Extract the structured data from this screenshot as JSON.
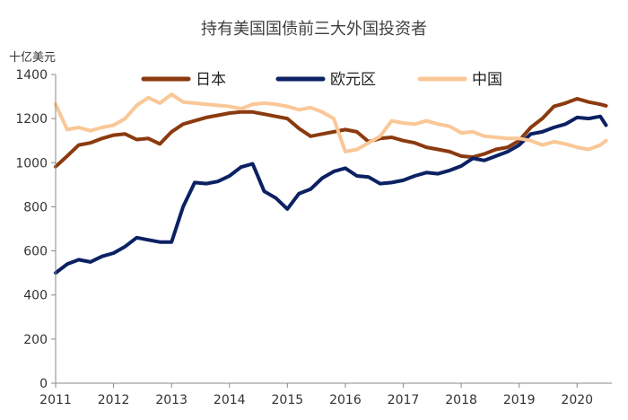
{
  "chart_data": {
    "type": "line",
    "title": "持有美国国债前三大外国投资者",
    "ylabel": "十亿美元",
    "xlabel": "",
    "xlim": [
      2011,
      2020.6
    ],
    "ylim": [
      0,
      1400
    ],
    "yticks": [
      "0",
      "200",
      "400",
      "600",
      "800",
      "1000",
      "1200",
      "1400"
    ],
    "xticks": [
      "2011",
      "2012",
      "2013",
      "2014",
      "2015",
      "2016",
      "2017",
      "2018",
      "2019",
      "2020"
    ],
    "grid": false,
    "legend": "top",
    "series": [
      {
        "name": "日本",
        "color": "#8B3A0F",
        "x": [
          2011.0,
          2011.2,
          2011.4,
          2011.6,
          2011.8,
          2012.0,
          2012.2,
          2012.4,
          2012.6,
          2012.8,
          2013.0,
          2013.2,
          2013.4,
          2013.6,
          2013.8,
          2014.0,
          2014.2,
          2014.4,
          2014.6,
          2014.8,
          2015.0,
          2015.2,
          2015.4,
          2015.6,
          2015.8,
          2016.0,
          2016.2,
          2016.4,
          2016.6,
          2016.8,
          2017.0,
          2017.2,
          2017.4,
          2017.6,
          2017.8,
          2018.0,
          2018.2,
          2018.4,
          2018.6,
          2018.8,
          2019.0,
          2019.2,
          2019.4,
          2019.6,
          2019.8,
          2020.0,
          2020.2,
          2020.4,
          2020.5
        ],
        "values": [
          982,
          1030,
          1080,
          1090,
          1110,
          1125,
          1130,
          1105,
          1110,
          1085,
          1140,
          1175,
          1190,
          1205,
          1215,
          1225,
          1230,
          1230,
          1220,
          1210,
          1200,
          1155,
          1120,
          1130,
          1140,
          1150,
          1140,
          1095,
          1110,
          1115,
          1100,
          1090,
          1070,
          1060,
          1050,
          1030,
          1025,
          1040,
          1060,
          1070,
          1100,
          1160,
          1200,
          1255,
          1270,
          1290,
          1275,
          1265,
          1258
        ]
      },
      {
        "name": "欧元区",
        "color": "#0B2163",
        "x": [
          2011.0,
          2011.2,
          2011.4,
          2011.6,
          2011.8,
          2012.0,
          2012.2,
          2012.4,
          2012.6,
          2012.8,
          2013.0,
          2013.2,
          2013.4,
          2013.6,
          2013.8,
          2014.0,
          2014.2,
          2014.4,
          2014.6,
          2014.8,
          2015.0,
          2015.2,
          2015.4,
          2015.6,
          2015.8,
          2016.0,
          2016.2,
          2016.4,
          2016.6,
          2016.8,
          2017.0,
          2017.2,
          2017.4,
          2017.6,
          2017.8,
          2018.0,
          2018.2,
          2018.4,
          2018.6,
          2018.8,
          2019.0,
          2019.2,
          2019.4,
          2019.6,
          2019.8,
          2020.0,
          2020.2,
          2020.4,
          2020.5
        ],
        "values": [
          500,
          540,
          560,
          550,
          575,
          590,
          620,
          660,
          650,
          640,
          640,
          800,
          910,
          905,
          915,
          940,
          980,
          995,
          870,
          840,
          790,
          860,
          880,
          930,
          960,
          975,
          940,
          935,
          905,
          910,
          920,
          940,
          955,
          950,
          965,
          985,
          1020,
          1010,
          1030,
          1050,
          1080,
          1130,
          1140,
          1160,
          1175,
          1205,
          1200,
          1210,
          1170
        ]
      },
      {
        "name": "中国",
        "color": "#FAC797",
        "x": [
          2011.0,
          2011.2,
          2011.4,
          2011.6,
          2011.8,
          2012.0,
          2012.2,
          2012.4,
          2012.6,
          2012.8,
          2013.0,
          2013.2,
          2013.4,
          2013.6,
          2013.8,
          2014.0,
          2014.2,
          2014.4,
          2014.6,
          2014.8,
          2015.0,
          2015.2,
          2015.4,
          2015.6,
          2015.8,
          2016.0,
          2016.2,
          2016.4,
          2016.6,
          2016.8,
          2017.0,
          2017.2,
          2017.4,
          2017.6,
          2017.8,
          2018.0,
          2018.2,
          2018.4,
          2018.6,
          2018.8,
          2019.0,
          2019.2,
          2019.4,
          2019.6,
          2019.8,
          2020.0,
          2020.2,
          2020.4,
          2020.5
        ],
        "values": [
          1265,
          1150,
          1160,
          1145,
          1160,
          1170,
          1200,
          1260,
          1295,
          1270,
          1310,
          1275,
          1270,
          1265,
          1260,
          1255,
          1245,
          1265,
          1270,
          1265,
          1255,
          1240,
          1250,
          1230,
          1200,
          1050,
          1060,
          1090,
          1120,
          1190,
          1180,
          1175,
          1190,
          1175,
          1165,
          1135,
          1140,
          1120,
          1115,
          1110,
          1110,
          1100,
          1080,
          1095,
          1085,
          1070,
          1060,
          1080,
          1100
        ]
      }
    ]
  }
}
